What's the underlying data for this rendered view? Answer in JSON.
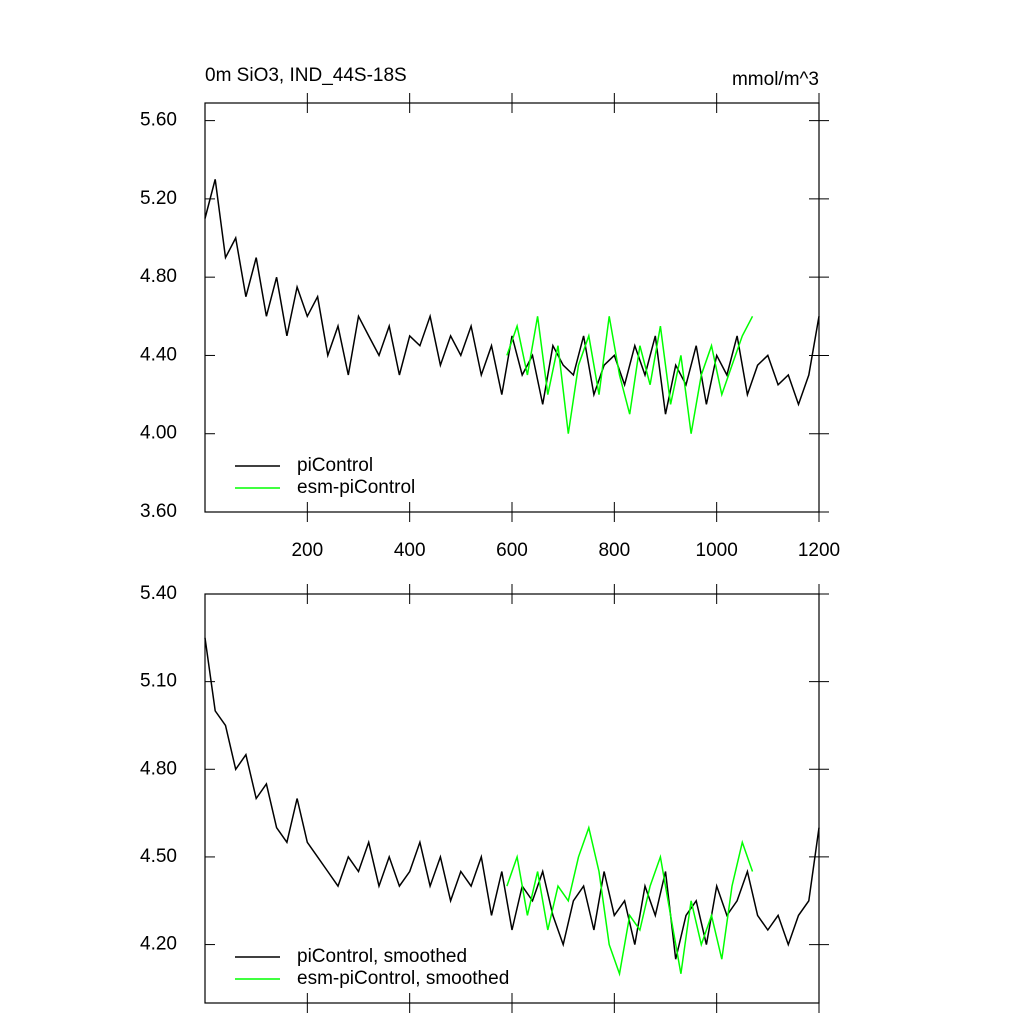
{
  "chart_data": [
    {
      "type": "line",
      "title": "0m SiO3, IND_44S-18S",
      "units": "mmol/m^3",
      "xlim": [
        0,
        1200
      ],
      "xticks": [
        200,
        400,
        600,
        800,
        1000,
        1200
      ],
      "ylim": [
        3.6,
        5.69
      ],
      "yticks": [
        {
          "value": 3.6,
          "label": "3.60"
        },
        {
          "value": 4.0,
          "label": "4.00"
        },
        {
          "value": 4.4,
          "label": "4.40"
        },
        {
          "value": 4.8,
          "label": "4.80"
        },
        {
          "value": 5.2,
          "label": "5.20"
        },
        {
          "value": 5.6,
          "label": "5.60"
        }
      ],
      "legend": "lower left",
      "series": [
        {
          "name": "piControl",
          "color": "#000000",
          "x": [
            0,
            20,
            40,
            60,
            80,
            100,
            120,
            140,
            160,
            180,
            200,
            220,
            240,
            260,
            280,
            300,
            320,
            340,
            360,
            380,
            400,
            420,
            440,
            460,
            480,
            500,
            520,
            540,
            560,
            580,
            600,
            620,
            640,
            660,
            680,
            700,
            720,
            740,
            760,
            780,
            800,
            820,
            840,
            860,
            880,
            900,
            920,
            940,
            960,
            980,
            1000,
            1020,
            1040,
            1060,
            1080,
            1100,
            1120,
            1140,
            1160,
            1180,
            1200
          ],
          "values": [
            5.1,
            5.3,
            4.9,
            5.0,
            4.7,
            4.9,
            4.6,
            4.8,
            4.5,
            4.75,
            4.6,
            4.7,
            4.4,
            4.55,
            4.3,
            4.6,
            4.5,
            4.4,
            4.55,
            4.3,
            4.5,
            4.45,
            4.6,
            4.35,
            4.5,
            4.4,
            4.55,
            4.3,
            4.45,
            4.2,
            4.5,
            4.3,
            4.4,
            4.15,
            4.45,
            4.35,
            4.3,
            4.5,
            4.2,
            4.35,
            4.4,
            4.25,
            4.45,
            4.3,
            4.5,
            4.1,
            4.35,
            4.25,
            4.45,
            4.15,
            4.4,
            4.3,
            4.5,
            4.2,
            4.35,
            4.4,
            4.25,
            4.3,
            4.15,
            4.3,
            4.6
          ]
        },
        {
          "name": "esm-piControl",
          "color": "#00ff00",
          "x": [
            590,
            610,
            630,
            650,
            670,
            690,
            710,
            730,
            750,
            770,
            790,
            810,
            830,
            850,
            870,
            890,
            910,
            930,
            950,
            970,
            990,
            1010,
            1030,
            1050,
            1070
          ],
          "values": [
            4.4,
            4.55,
            4.3,
            4.6,
            4.2,
            4.45,
            4.0,
            4.35,
            4.5,
            4.2,
            4.6,
            4.3,
            4.1,
            4.45,
            4.25,
            4.55,
            4.15,
            4.4,
            4.0,
            4.3,
            4.45,
            4.2,
            4.35,
            4.5,
            4.6
          ]
        }
      ]
    },
    {
      "type": "line",
      "xlim": [
        0,
        1200
      ],
      "xticks": [
        200,
        400,
        600,
        800,
        1000,
        1200
      ],
      "ylim": [
        4.0,
        5.4
      ],
      "yticks": [
        {
          "value": 4.2,
          "label": "4.20"
        },
        {
          "value": 4.5,
          "label": "4.50"
        },
        {
          "value": 4.8,
          "label": "4.80"
        },
        {
          "value": 5.1,
          "label": "5.10"
        },
        {
          "value": 5.4,
          "label": "5.40"
        }
      ],
      "legend": "lower left",
      "series": [
        {
          "name": "piControl, smoothed",
          "color": "#000000",
          "x": [
            0,
            20,
            40,
            60,
            80,
            100,
            120,
            140,
            160,
            180,
            200,
            220,
            240,
            260,
            280,
            300,
            320,
            340,
            360,
            380,
            400,
            420,
            440,
            460,
            480,
            500,
            520,
            540,
            560,
            580,
            600,
            620,
            640,
            660,
            680,
            700,
            720,
            740,
            760,
            780,
            800,
            820,
            840,
            860,
            880,
            900,
            920,
            940,
            960,
            980,
            1000,
            1020,
            1040,
            1060,
            1080,
            1100,
            1120,
            1140,
            1160,
            1180,
            1200
          ],
          "values": [
            5.25,
            5.0,
            4.95,
            4.8,
            4.85,
            4.7,
            4.75,
            4.6,
            4.55,
            4.7,
            4.55,
            4.5,
            4.45,
            4.4,
            4.5,
            4.45,
            4.55,
            4.4,
            4.5,
            4.4,
            4.45,
            4.55,
            4.4,
            4.5,
            4.35,
            4.45,
            4.4,
            4.5,
            4.3,
            4.45,
            4.25,
            4.4,
            4.35,
            4.45,
            4.3,
            4.2,
            4.35,
            4.4,
            4.25,
            4.45,
            4.3,
            4.35,
            4.2,
            4.4,
            4.3,
            4.45,
            4.15,
            4.3,
            4.35,
            4.2,
            4.4,
            4.3,
            4.35,
            4.45,
            4.3,
            4.25,
            4.3,
            4.2,
            4.3,
            4.35,
            4.6
          ]
        },
        {
          "name": "esm-piControl, smoothed",
          "color": "#00ff00",
          "x": [
            590,
            610,
            630,
            650,
            670,
            690,
            710,
            730,
            750,
            770,
            790,
            810,
            830,
            850,
            870,
            890,
            910,
            930,
            950,
            970,
            990,
            1010,
            1030,
            1050,
            1070
          ],
          "values": [
            4.4,
            4.5,
            4.3,
            4.45,
            4.25,
            4.4,
            4.35,
            4.5,
            4.6,
            4.45,
            4.2,
            4.1,
            4.3,
            4.25,
            4.4,
            4.5,
            4.3,
            4.1,
            4.35,
            4.2,
            4.3,
            4.15,
            4.4,
            4.55,
            4.45
          ]
        }
      ]
    }
  ]
}
